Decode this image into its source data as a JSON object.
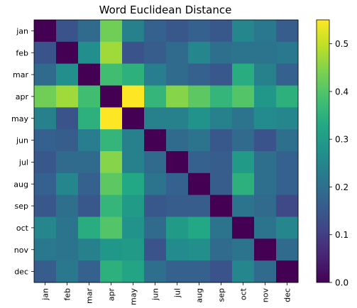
{
  "chart_data": {
    "type": "heatmap",
    "title": "Word Euclidean Distance",
    "xlabel": "",
    "ylabel": "",
    "categories": [
      "jan",
      "feb",
      "mar",
      "apr",
      "may",
      "jun",
      "jul",
      "aug",
      "sep",
      "oct",
      "nov",
      "dec"
    ],
    "colormap": "viridis",
    "vmin": 0.0,
    "vmax": 0.55,
    "colorbar_ticks": [
      "0.0",
      "0.1",
      "0.2",
      "0.3",
      "0.4",
      "0.5"
    ],
    "colorbar_values": [
      0.0,
      0.1,
      0.2,
      0.3,
      0.4,
      0.5
    ],
    "values": [
      [
        0.0,
        0.14,
        0.19,
        0.43,
        0.24,
        0.17,
        0.15,
        0.17,
        0.15,
        0.25,
        0.22,
        0.16
      ],
      [
        0.14,
        0.0,
        0.27,
        0.47,
        0.14,
        0.16,
        0.19,
        0.25,
        0.2,
        0.21,
        0.21,
        0.22
      ],
      [
        0.19,
        0.27,
        0.0,
        0.38,
        0.35,
        0.23,
        0.19,
        0.17,
        0.15,
        0.34,
        0.24,
        0.17
      ],
      [
        0.43,
        0.47,
        0.38,
        0.0,
        0.55,
        0.36,
        0.45,
        0.41,
        0.36,
        0.4,
        0.29,
        0.35
      ],
      [
        0.24,
        0.14,
        0.35,
        0.55,
        0.0,
        0.24,
        0.24,
        0.28,
        0.24,
        0.21,
        0.26,
        0.25
      ],
      [
        0.17,
        0.16,
        0.23,
        0.36,
        0.24,
        0.0,
        0.19,
        0.21,
        0.15,
        0.19,
        0.14,
        0.2
      ],
      [
        0.15,
        0.19,
        0.19,
        0.45,
        0.24,
        0.19,
        0.0,
        0.17,
        0.16,
        0.3,
        0.2,
        0.17
      ],
      [
        0.17,
        0.25,
        0.17,
        0.41,
        0.33,
        0.21,
        0.17,
        0.0,
        0.16,
        0.35,
        0.2,
        0.17
      ],
      [
        0.15,
        0.2,
        0.15,
        0.36,
        0.3,
        0.15,
        0.16,
        0.16,
        0.0,
        0.21,
        0.19,
        0.12
      ],
      [
        0.25,
        0.21,
        0.34,
        0.4,
        0.28,
        0.19,
        0.3,
        0.33,
        0.21,
        0.0,
        0.21,
        0.25
      ],
      [
        0.22,
        0.21,
        0.24,
        0.29,
        0.3,
        0.14,
        0.26,
        0.27,
        0.19,
        0.21,
        0.0,
        0.19
      ],
      [
        0.16,
        0.22,
        0.17,
        0.35,
        0.32,
        0.2,
        0.17,
        0.17,
        0.14,
        0.25,
        0.19,
        0.0
      ]
    ]
  }
}
